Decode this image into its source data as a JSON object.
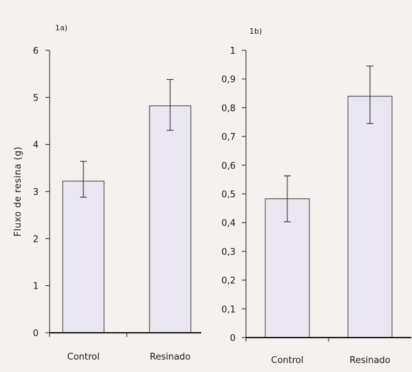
{
  "chart_data": [
    {
      "type": "bar",
      "panel_label": "1a)",
      "ylabel": "Fluxo de resina (g)",
      "categories": [
        "Control",
        "Resinado"
      ],
      "values": [
        3.22,
        4.82
      ],
      "error_low": [
        2.88,
        4.3
      ],
      "error_high": [
        3.64,
        5.38
      ],
      "ylim": [
        0,
        6
      ],
      "yticks": [
        0,
        1,
        2,
        3,
        4,
        5,
        6
      ],
      "ytick_labels": [
        "0",
        "1",
        "2",
        "3",
        "4",
        "5",
        "6"
      ],
      "grid": false,
      "bar_color": "#e9e6f2"
    },
    {
      "type": "bar",
      "panel_label": "1b)",
      "ylabel": "",
      "categories": [
        "Control",
        "Resinado"
      ],
      "values": [
        0.483,
        0.84
      ],
      "error_low": [
        0.403,
        0.745
      ],
      "error_high": [
        0.563,
        0.945
      ],
      "ylim": [
        0,
        1
      ],
      "yticks": [
        0,
        0.1,
        0.2,
        0.3,
        0.4,
        0.5,
        0.6,
        0.7,
        0.8,
        0.9,
        1
      ],
      "ytick_labels": [
        "0",
        "0,1",
        "0,2",
        "0,3",
        "0,4",
        "0,5",
        "0,6",
        "0,7",
        "0,8",
        "0,9",
        "1"
      ],
      "grid": false,
      "bar_color": "#e9e6f2"
    }
  ]
}
